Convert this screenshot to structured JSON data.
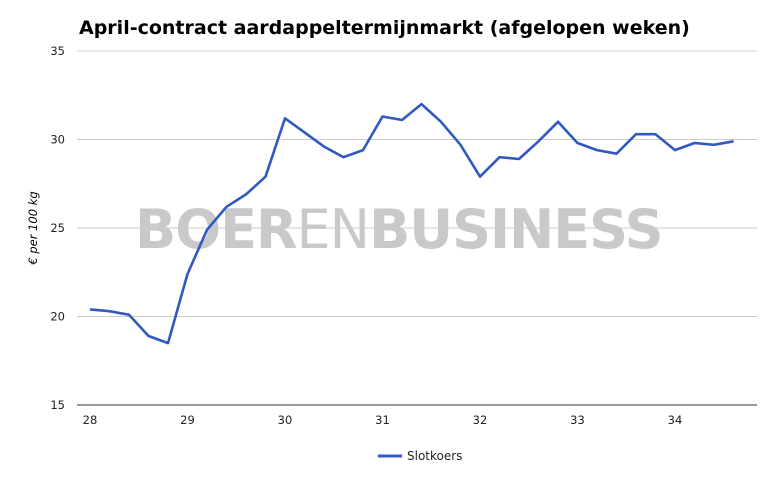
{
  "chart_data": {
    "type": "line",
    "title": "April-contract aardappeltermijnmarkt (afgelopen weken)",
    "ylabel": "€ per 100 kg",
    "xlabel": "",
    "ylim": [
      15,
      35
    ],
    "yticks": [
      15,
      20,
      25,
      30,
      35
    ],
    "xlim": [
      28,
      34.8
    ],
    "xticks": [
      28,
      29,
      30,
      31,
      32,
      33,
      34
    ],
    "grid": true,
    "legend_position": "bottom",
    "watermark": {
      "part1": "BOER",
      "part2": "EN",
      "part3": "BUSINESS"
    },
    "series": [
      {
        "name": "Slotkoers",
        "color": "#3059c2",
        "x": [
          28.0,
          28.2,
          28.4,
          28.6,
          28.8,
          29.0,
          29.2,
          29.4,
          29.6,
          29.8,
          30.0,
          30.2,
          30.4,
          30.6,
          30.8,
          31.0,
          31.2,
          31.4,
          31.6,
          31.8,
          32.0,
          32.2,
          32.4,
          32.6,
          32.8,
          33.0,
          33.2,
          33.4,
          33.6,
          33.8,
          34.0,
          34.2,
          34.4,
          34.6
        ],
        "values": [
          20.4,
          20.3,
          20.1,
          18.9,
          18.5,
          22.4,
          24.9,
          26.2,
          26.9,
          27.9,
          31.2,
          30.4,
          29.6,
          29.0,
          29.4,
          31.3,
          31.1,
          32.0,
          31.0,
          29.7,
          27.9,
          29.0,
          28.9,
          29.9,
          31.0,
          29.8,
          29.4,
          29.2,
          30.3,
          30.3,
          29.4,
          29.8,
          29.7,
          29.9
        ]
      }
    ]
  }
}
